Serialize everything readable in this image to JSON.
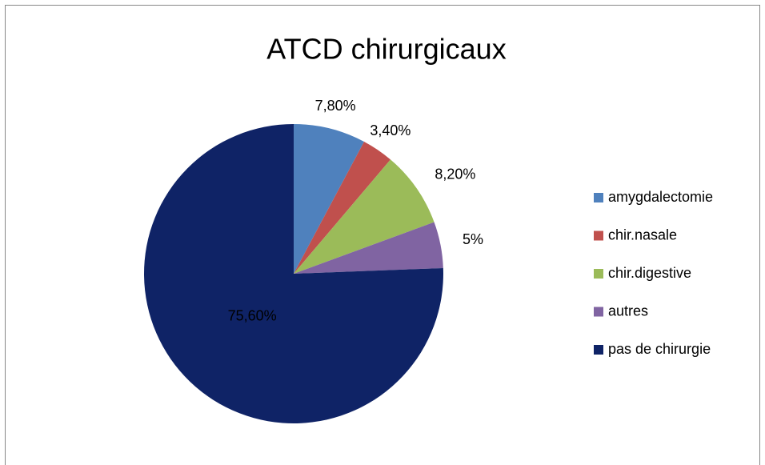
{
  "chart_data": {
    "type": "pie",
    "title": "ATCD chirurgicaux",
    "categories": [
      "amygdalectomie",
      "chir.nasale",
      "chir.digestive",
      "autres",
      "pas de chirurgie"
    ],
    "values": [
      7.8,
      3.4,
      8.2,
      5,
      75.6
    ],
    "value_labels": [
      "7,80%",
      "3,40%",
      "8,20%",
      "5%",
      "75,60%"
    ],
    "colors": [
      "#4f81bd",
      "#c0504d",
      "#9bbb59",
      "#8064a2",
      "#0f2366"
    ],
    "legend": "right"
  }
}
